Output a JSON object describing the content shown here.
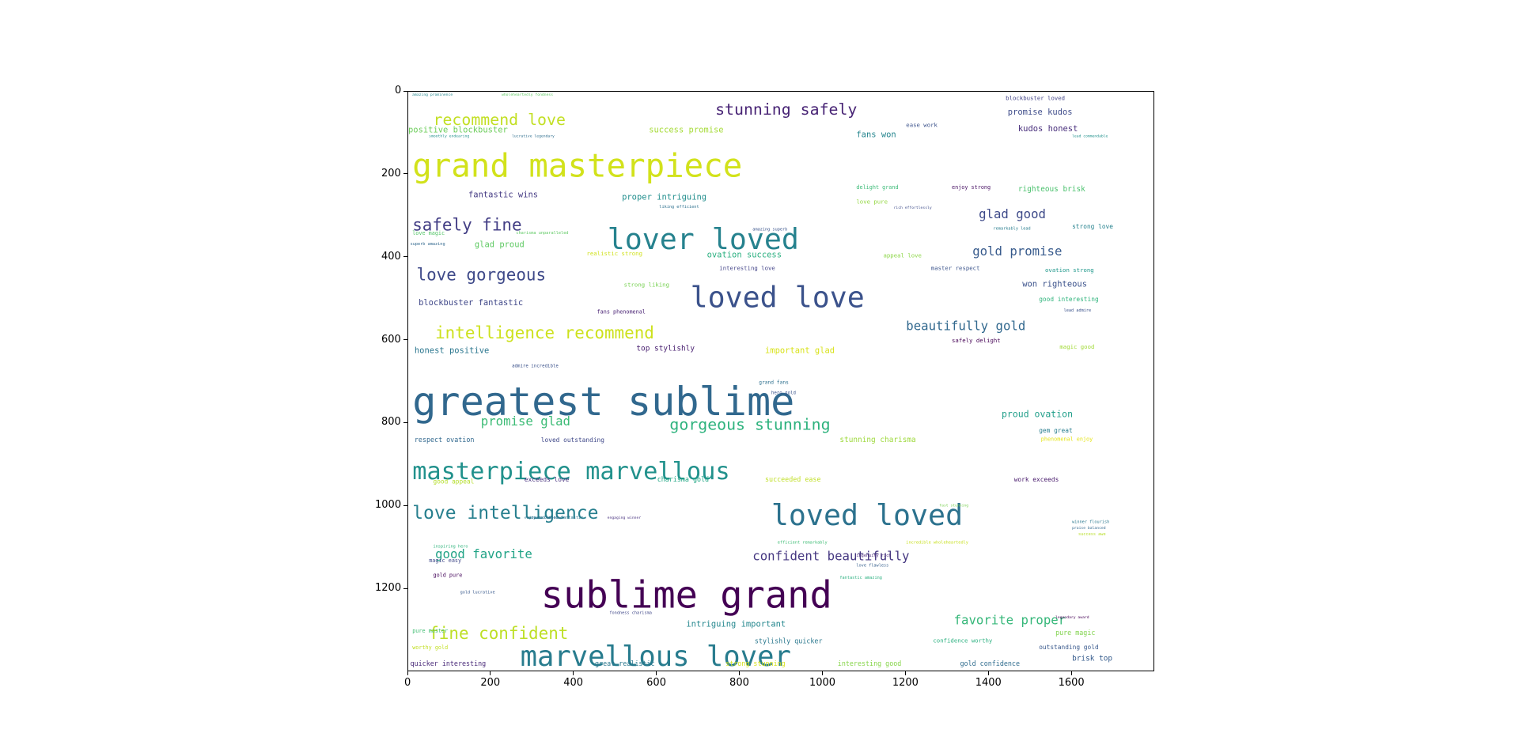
{
  "chart_data": {
    "type": "wordcloud",
    "xlim": [
      0,
      1800
    ],
    "ylim": [
      0,
      1400
    ],
    "y_inverted": true,
    "xticks": [
      0,
      200,
      400,
      600,
      800,
      1000,
      1200,
      1400,
      1600
    ],
    "yticks": [
      0,
      200,
      400,
      600,
      800,
      1000,
      1200
    ],
    "colormap": "viridis",
    "words": [
      {
        "text": "grand masterpiece",
        "x": 10,
        "y": 205,
        "size": 78,
        "color": "#d2e21b"
      },
      {
        "text": "greatest sublime",
        "x": 10,
        "y": 780,
        "size": 96,
        "color": "#31688e"
      },
      {
        "text": "masterpiece marvellous",
        "x": 10,
        "y": 935,
        "size": 58,
        "color": "#21918c"
      },
      {
        "text": "sublime grand",
        "x": 320,
        "y": 1245,
        "size": 90,
        "color": "#440154"
      },
      {
        "text": "lover loved",
        "x": 480,
        "y": 380,
        "size": 70,
        "color": "#26828e"
      },
      {
        "text": "loved love",
        "x": 680,
        "y": 520,
        "size": 70,
        "color": "#3b528b"
      },
      {
        "text": "loved loved",
        "x": 875,
        "y": 1045,
        "size": 70,
        "color": "#2c728e"
      },
      {
        "text": "marvellous lover",
        "x": 270,
        "y": 1385,
        "size": 68,
        "color": "#287c8e"
      },
      {
        "text": "love intelligence",
        "x": 10,
        "y": 1030,
        "size": 44,
        "color": "#277f8e"
      },
      {
        "text": "love gorgeous",
        "x": 20,
        "y": 455,
        "size": 40,
        "color": "#3e4989"
      },
      {
        "text": "intelligence recommend",
        "x": 65,
        "y": 595,
        "size": 40,
        "color": "#cde11d"
      },
      {
        "text": "gorgeous stunning",
        "x": 630,
        "y": 815,
        "size": 38,
        "color": "#2db27d"
      },
      {
        "text": "stunning safely",
        "x": 740,
        "y": 55,
        "size": 38,
        "color": "#482475"
      },
      {
        "text": "recommend love",
        "x": 60,
        "y": 80,
        "size": 38,
        "color": "#c2df23"
      },
      {
        "text": "safely fine",
        "x": 10,
        "y": 335,
        "size": 40,
        "color": "#433e85"
      },
      {
        "text": "fine confident",
        "x": 50,
        "y": 1320,
        "size": 40,
        "color": "#bddf26"
      },
      {
        "text": "beautifully gold",
        "x": 1200,
        "y": 575,
        "size": 30,
        "color": "#31688e"
      },
      {
        "text": "confident beautifully",
        "x": 830,
        "y": 1130,
        "size": 30,
        "color": "#453781"
      },
      {
        "text": "favorite proper",
        "x": 1315,
        "y": 1285,
        "size": 30,
        "color": "#35b779"
      },
      {
        "text": "promise glad",
        "x": 175,
        "y": 805,
        "size": 30,
        "color": "#3bbb75"
      },
      {
        "text": "good favorite",
        "x": 65,
        "y": 1125,
        "size": 30,
        "color": "#20a386"
      },
      {
        "text": "glad good",
        "x": 1375,
        "y": 305,
        "size": 30,
        "color": "#3e4a89"
      },
      {
        "text": "gold promise",
        "x": 1360,
        "y": 395,
        "size": 30,
        "color": "#375a8c"
      },
      {
        "text": "proud ovation",
        "x": 1430,
        "y": 785,
        "size": 22,
        "color": "#1f9e89"
      },
      {
        "text": "positive blockbuster",
        "x": 0,
        "y": 98,
        "size": 20,
        "color": "#6ccd5a"
      },
      {
        "text": "success promise",
        "x": 580,
        "y": 98,
        "size": 20,
        "color": "#a5db36"
      },
      {
        "text": "fantastic wins",
        "x": 145,
        "y": 255,
        "size": 20,
        "color": "#443a83"
      },
      {
        "text": "proper intriguing",
        "x": 515,
        "y": 260,
        "size": 20,
        "color": "#218e8d"
      },
      {
        "text": "glad proud",
        "x": 160,
        "y": 375,
        "size": 20,
        "color": "#5ec962"
      },
      {
        "text": "ovation success",
        "x": 720,
        "y": 400,
        "size": 20,
        "color": "#29af7f"
      },
      {
        "text": "blockbuster fantastic",
        "x": 25,
        "y": 515,
        "size": 20,
        "color": "#3f4788"
      },
      {
        "text": "honest positive",
        "x": 15,
        "y": 630,
        "size": 20,
        "color": "#2a768e"
      },
      {
        "text": "top stylishly",
        "x": 550,
        "y": 625,
        "size": 18,
        "color": "#481f70"
      },
      {
        "text": "important glad",
        "x": 860,
        "y": 630,
        "size": 20,
        "color": "#d8e219"
      },
      {
        "text": "won righteous",
        "x": 1480,
        "y": 470,
        "size": 20,
        "color": "#3b528b"
      },
      {
        "text": "kudos honest",
        "x": 1470,
        "y": 95,
        "size": 20,
        "color": "#472d7b"
      },
      {
        "text": "promise kudos",
        "x": 1445,
        "y": 55,
        "size": 20,
        "color": "#3e4c8a"
      },
      {
        "text": "fans won",
        "x": 1080,
        "y": 110,
        "size": 20,
        "color": "#25858e"
      },
      {
        "text": "righteous brisk",
        "x": 1470,
        "y": 240,
        "size": 18,
        "color": "#4ac16d"
      },
      {
        "text": "intriguing important",
        "x": 670,
        "y": 1290,
        "size": 20,
        "color": "#24878e"
      },
      {
        "text": "stunning charisma",
        "x": 1040,
        "y": 845,
        "size": 18,
        "color": "#9dd93b"
      },
      {
        "text": "gold confidence",
        "x": 1330,
        "y": 1385,
        "size": 16,
        "color": "#2f6c8e"
      },
      {
        "text": "strong stunning",
        "x": 765,
        "y": 1385,
        "size": 16,
        "color": "#d5e21a"
      },
      {
        "text": "great realistic",
        "x": 450,
        "y": 1385,
        "size": 16,
        "color": "#2a778e"
      },
      {
        "text": "quicker interesting",
        "x": 5,
        "y": 1385,
        "size": 16,
        "color": "#482878"
      },
      {
        "text": "interesting good",
        "x": 1035,
        "y": 1385,
        "size": 16,
        "color": "#86d549"
      },
      {
        "text": "brisk top",
        "x": 1600,
        "y": 1372,
        "size": 18,
        "color": "#365c8d"
      },
      {
        "text": "stylishly quicker",
        "x": 835,
        "y": 1330,
        "size": 16,
        "color": "#2a788e"
      },
      {
        "text": "confidence worthy",
        "x": 1265,
        "y": 1328,
        "size": 14,
        "color": "#2ab07f"
      },
      {
        "text": "outstanding gold",
        "x": 1520,
        "y": 1345,
        "size": 15,
        "color": "#38588c"
      },
      {
        "text": "pure magic",
        "x": 1560,
        "y": 1310,
        "size": 16,
        "color": "#81d34d"
      },
      {
        "text": "respect ovation",
        "x": 15,
        "y": 845,
        "size": 16,
        "color": "#31688e"
      },
      {
        "text": "loved outstanding",
        "x": 320,
        "y": 845,
        "size": 15,
        "color": "#3f4889"
      },
      {
        "text": "good appeal",
        "x": 60,
        "y": 945,
        "size": 15,
        "color": "#b5de2b"
      },
      {
        "text": "exceeds love",
        "x": 280,
        "y": 940,
        "size": 15,
        "color": "#46307e"
      },
      {
        "text": "charisma gold",
        "x": 600,
        "y": 940,
        "size": 16,
        "color": "#22a785"
      },
      {
        "text": "succeeded ease",
        "x": 860,
        "y": 940,
        "size": 16,
        "color": "#c0df25"
      },
      {
        "text": "work exceeds",
        "x": 1460,
        "y": 940,
        "size": 15,
        "color": "#481a6c"
      },
      {
        "text": "gem great",
        "x": 1520,
        "y": 822,
        "size": 15,
        "color": "#287d8e"
      },
      {
        "text": "phenomenal enjoy",
        "x": 1525,
        "y": 842,
        "size": 13,
        "color": "#e5e419"
      },
      {
        "text": "good interesting",
        "x": 1520,
        "y": 505,
        "size": 15,
        "color": "#2fb47c"
      },
      {
        "text": "ovation strong",
        "x": 1535,
        "y": 435,
        "size": 14,
        "color": "#1f988b"
      },
      {
        "text": "strong love",
        "x": 1600,
        "y": 330,
        "size": 15,
        "color": "#26828e"
      },
      {
        "text": "magic good",
        "x": 1570,
        "y": 620,
        "size": 14,
        "color": "#a2da37"
      },
      {
        "text": "safely delight",
        "x": 1310,
        "y": 605,
        "size": 14,
        "color": "#440154"
      },
      {
        "text": "appeal love",
        "x": 1145,
        "y": 400,
        "size": 14,
        "color": "#8bd646"
      },
      {
        "text": "master respect",
        "x": 1260,
        "y": 430,
        "size": 14,
        "color": "#3a538b"
      },
      {
        "text": "interesting love",
        "x": 750,
        "y": 430,
        "size": 14,
        "color": "#414287"
      },
      {
        "text": "realistic strong",
        "x": 430,
        "y": 395,
        "size": 14,
        "color": "#d0e11c"
      },
      {
        "text": "strong liking",
        "x": 520,
        "y": 470,
        "size": 14,
        "color": "#78d152"
      },
      {
        "text": "fans phenomenal",
        "x": 455,
        "y": 535,
        "size": 13,
        "color": "#482173"
      },
      {
        "text": "love pure",
        "x": 1080,
        "y": 270,
        "size": 14,
        "color": "#93d741"
      },
      {
        "text": "delight grand",
        "x": 1080,
        "y": 235,
        "size": 13,
        "color": "#3aba76"
      },
      {
        "text": "enjoy strong",
        "x": 1310,
        "y": 235,
        "size": 13,
        "color": "#471063"
      },
      {
        "text": "ease work",
        "x": 1200,
        "y": 85,
        "size": 14,
        "color": "#3b528b"
      },
      {
        "text": "blockbuster loved",
        "x": 1440,
        "y": 20,
        "size": 14,
        "color": "#414287"
      },
      {
        "text": "love magic",
        "x": 10,
        "y": 345,
        "size": 13,
        "color": "#54c568"
      },
      {
        "text": "magic easy",
        "x": 50,
        "y": 1135,
        "size": 13,
        "color": "#3f4788"
      },
      {
        "text": "gold pure",
        "x": 60,
        "y": 1170,
        "size": 13,
        "color": "#46085c"
      },
      {
        "text": "pure master",
        "x": 10,
        "y": 1305,
        "size": 13,
        "color": "#40bd72"
      },
      {
        "text": "worthy gold",
        "x": 10,
        "y": 1345,
        "size": 13,
        "color": "#c2df23"
      },
      {
        "text": "grand fans",
        "x": 845,
        "y": 705,
        "size": 12,
        "color": "#2d708e"
      },
      {
        "text": "hero gold",
        "x": 875,
        "y": 730,
        "size": 11,
        "color": "#3a548c"
      },
      {
        "text": "admire incredible",
        "x": 250,
        "y": 665,
        "size": 11,
        "color": "#3b528b"
      },
      {
        "text": "love flawless",
        "x": 1080,
        "y": 1145,
        "size": 10,
        "color": "#355f8d"
      },
      {
        "text": "fantastic amazing",
        "x": 1040,
        "y": 1175,
        "size": 10,
        "color": "#29af7f"
      },
      {
        "text": "efficient remarkably",
        "x": 890,
        "y": 1090,
        "size": 10,
        "color": "#3dbc74"
      },
      {
        "text": "incredible wholeheartedly",
        "x": 1200,
        "y": 1090,
        "size": 10,
        "color": "#c8e020"
      },
      {
        "text": "ingenuity rich",
        "x": 1080,
        "y": 1122,
        "size": 10,
        "color": "#482878"
      },
      {
        "text": "inspiring hero",
        "x": 60,
        "y": 1100,
        "size": 10,
        "color": "#2fb47c"
      },
      {
        "text": "gold lucrative",
        "x": 125,
        "y": 1210,
        "size": 10,
        "color": "#38598c"
      },
      {
        "text": "remarkably lead",
        "x": 1410,
        "y": 333,
        "size": 10,
        "color": "#287d8e"
      },
      {
        "text": "lead admire",
        "x": 1580,
        "y": 530,
        "size": 10,
        "color": "#3b528b"
      },
      {
        "text": "superb amazing",
        "x": 5,
        "y": 370,
        "size": 10,
        "color": "#31688e"
      },
      {
        "text": "charisma unparalleled",
        "x": 260,
        "y": 343,
        "size": 10,
        "color": "#5ec962"
      },
      {
        "text": "amazing superb",
        "x": 830,
        "y": 335,
        "size": 10,
        "color": "#3a548c"
      },
      {
        "text": "liking efficient",
        "x": 605,
        "y": 280,
        "size": 10,
        "color": "#2d708e"
      },
      {
        "text": "smoothly endearing",
        "x": 50,
        "y": 110,
        "size": 9,
        "color": "#21918c"
      },
      {
        "text": "lucrative legendary",
        "x": 250,
        "y": 110,
        "size": 9,
        "color": "#2e6e8e"
      },
      {
        "text": "amazing prominence",
        "x": 10,
        "y": 10,
        "size": 9,
        "color": "#24878e"
      },
      {
        "text": "wholeheartedly fondness",
        "x": 225,
        "y": 10,
        "size": 9,
        "color": "#5ec962"
      },
      {
        "text": "lead commendable",
        "x": 1600,
        "y": 110,
        "size": 9,
        "color": "#21918c"
      },
      {
        "text": "rich effortlessly",
        "x": 1170,
        "y": 282,
        "size": 9,
        "color": "#3e4c8a"
      },
      {
        "text": "unparalleled fantastic",
        "x": 290,
        "y": 1030,
        "size": 10,
        "color": "#2c738e"
      },
      {
        "text": "fondness charisma",
        "x": 485,
        "y": 1260,
        "size": 10,
        "color": "#3f4788"
      },
      {
        "text": "legendary award",
        "x": 1560,
        "y": 1270,
        "size": 9,
        "color": "#440154"
      },
      {
        "text": "winner flourish",
        "x": 1600,
        "y": 1040,
        "size": 10,
        "color": "#2a788e"
      },
      {
        "text": "praise balanced",
        "x": 1600,
        "y": 1055,
        "size": 9,
        "color": "#31688e"
      },
      {
        "text": "success awe",
        "x": 1615,
        "y": 1070,
        "size": 10,
        "color": "#b8de29"
      },
      {
        "text": "engaging winner",
        "x": 480,
        "y": 1030,
        "size": 9,
        "color": "#46307e"
      },
      {
        "text": "enjoy recommended",
        "x": 280,
        "y": 1030,
        "size": 9,
        "color": "#2c728e"
      },
      {
        "text": "fast stunning",
        "x": 1280,
        "y": 1000,
        "size": 9,
        "color": "#7ad151"
      }
    ]
  }
}
